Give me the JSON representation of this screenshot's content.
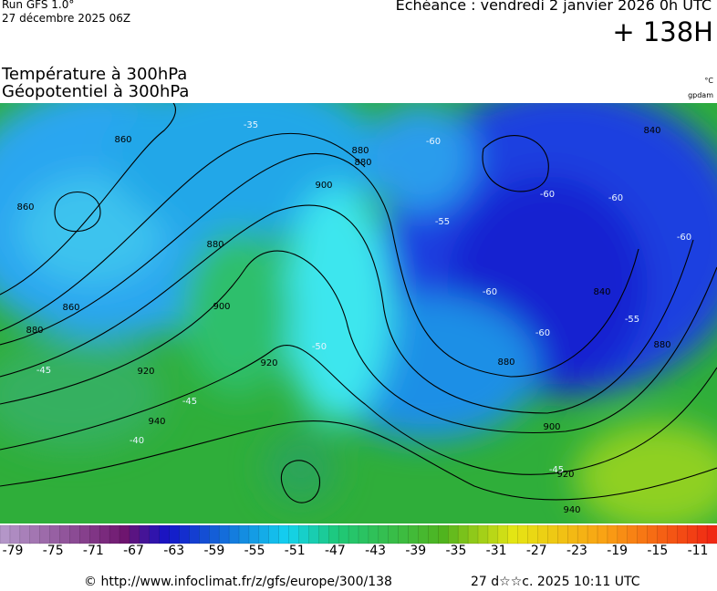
{
  "header": {
    "run": "Run GFS 1.0°",
    "run_date": "27 décembre 2025 06Z",
    "valid": "Echéance : vendredi 2 janvier 2026 0h UTC",
    "lead": "+ 138H",
    "title_line1": "Température à 300hPa",
    "title_line2": "Géopotentiel à 300hPa",
    "unit_temp": "°C",
    "unit_geo": "gpdam"
  },
  "map": {
    "contour_labels": [
      "860",
      "860",
      "860",
      "880",
      "880",
      "900",
      "880",
      "900",
      "920",
      "920",
      "940",
      "880",
      "840",
      "880",
      "900",
      "920",
      "940",
      "840",
      "880"
    ],
    "temp_labels": [
      "-35",
      "-60",
      "-60",
      "-55",
      "-60",
      "-60",
      "-55",
      "-45",
      "-45",
      "-40",
      "-50",
      "-45",
      "-60",
      "-60"
    ]
  },
  "colorbar": {
    "labels": [
      "-79",
      "-75",
      "-71",
      "-67",
      "-63",
      "-59",
      "-55",
      "-51",
      "-47",
      "-43",
      "-39",
      "-35",
      "-31",
      "-27",
      "-23",
      "-19",
      "-15",
      "-11"
    ]
  },
  "footer": {
    "source": "© http://www.infoclimat.fr/z/gfs/europe/300/138",
    "timestamp": "27 d☆☆c. 2025 10:11 UTC"
  }
}
